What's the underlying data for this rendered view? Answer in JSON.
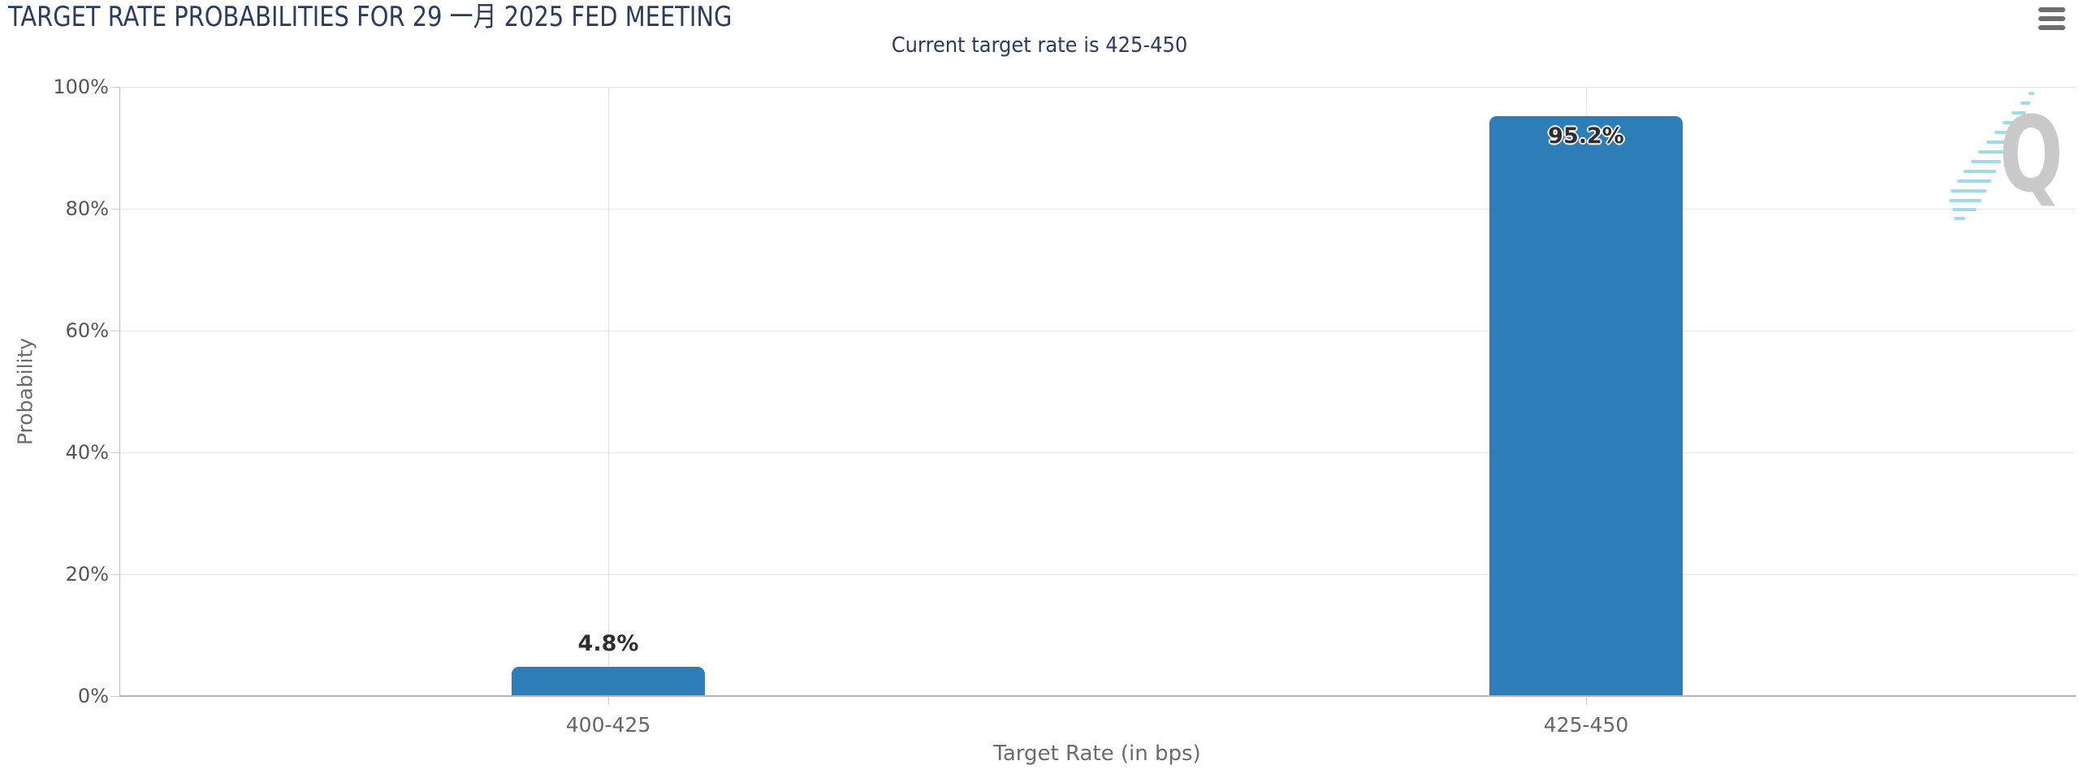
{
  "header": {
    "title": "TARGET RATE PROBABILITIES FOR 29 一月 2025 FED MEETING",
    "subtitle": "Current target rate is 425-450"
  },
  "toolbar": {
    "menu_icon": "hamburger-menu-icon"
  },
  "watermark": {
    "letter": "Q"
  },
  "chart_data": {
    "type": "bar",
    "title": "TARGET RATE PROBABILITIES FOR 29 一月 2025 FED MEETING",
    "subtitle": "Current target rate is 425-450",
    "categories": [
      "400-425",
      "425-450"
    ],
    "values": [
      4.8,
      95.2
    ],
    "data_labels": [
      "4.8%",
      "95.2%"
    ],
    "xlabel": "Target Rate (in bps)",
    "ylabel": "Probability",
    "ylim": [
      0,
      100
    ],
    "yticks": [
      0,
      20,
      40,
      60,
      80,
      100
    ],
    "ytick_labels": [
      "0%",
      "20%",
      "40%",
      "60%",
      "80%",
      "100%"
    ],
    "grid": true,
    "legend": false,
    "bar_color": "#2c7db8"
  },
  "colors": {
    "title": "#2b3c5e",
    "axis_title": "#6b6b6b",
    "xtick_label": "#666666",
    "ytick_label": "#555555",
    "grid_line": "#e6e6e6",
    "axis_line": "#b3b3b3",
    "bar": "#2c7db8",
    "data_label": "#2e2e2e",
    "menu_icon": "#6d6d6d",
    "watermark_q": "#c9c9c9",
    "watermark_dash": "#9fdce9"
  }
}
